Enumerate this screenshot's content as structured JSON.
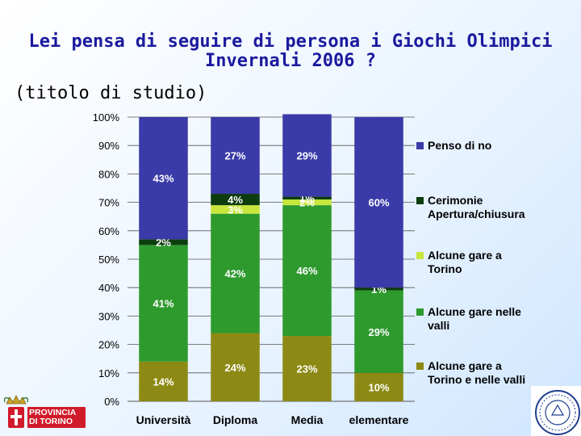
{
  "title_line1": "Lei pensa di seguire di persona i Giochi Olimpici",
  "title_line2": "Invernali 2006 ?",
  "subtitle": "(titolo di studio)",
  "logo": {
    "line1": "PROVINCIA",
    "line2": "DI TORINO"
  },
  "colors": {
    "Penso di no": "#3a3aa8",
    "Cerimonie Apertura/chiusura": "#0d3d0d",
    "Alcune gare a Torino": "#c8e63c",
    "Alcune gare nelle valli": "#2e9a2e",
    "Alcune gare a Torino e nelle valli": "#8c8a14"
  },
  "chart_data": {
    "type": "bar",
    "stacked": true,
    "categories": [
      "Università",
      "Diploma",
      "Media",
      "elementare"
    ],
    "ylim": [
      0,
      100
    ],
    "yticks": [
      "0%",
      "10%",
      "20%",
      "30%",
      "40%",
      "50%",
      "60%",
      "70%",
      "80%",
      "90%",
      "100%"
    ],
    "grid": true,
    "legend_position": "right",
    "series": [
      {
        "name": "Alcune gare a Torino e nelle valli",
        "values": [
          14,
          24,
          23,
          10
        ],
        "labels": [
          "14%",
          "24%",
          "23%",
          "10%"
        ]
      },
      {
        "name": "Alcune gare nelle valli",
        "values": [
          41,
          42,
          46,
          29
        ],
        "labels": [
          "41%",
          "42%",
          "46%",
          "29%"
        ]
      },
      {
        "name": "Alcune gare a Torino",
        "values": [
          0,
          3,
          2,
          0
        ],
        "labels": [
          "",
          "3%",
          "2%",
          ""
        ]
      },
      {
        "name": "Cerimonie Apertura/chiusura",
        "values": [
          2,
          4,
          1,
          1
        ],
        "labels": [
          "2%",
          "4%",
          "1%",
          "1%"
        ]
      },
      {
        "name": "Penso di no",
        "values": [
          43,
          27,
          29,
          60
        ],
        "labels": [
          "43%",
          "27%",
          "29%",
          "60%"
        ]
      }
    ],
    "legend": [
      {
        "line1": "Penso di no",
        "line2": ""
      },
      {
        "line1": "Cerimonie",
        "line2": "Apertura/chiusura"
      },
      {
        "line1": "Alcune gare a",
        "line2": "Torino"
      },
      {
        "line1": "Alcune gare nelle",
        "line2": "valli"
      },
      {
        "line1": "Alcune gare a",
        "line2": "Torino e nelle valli"
      }
    ]
  }
}
